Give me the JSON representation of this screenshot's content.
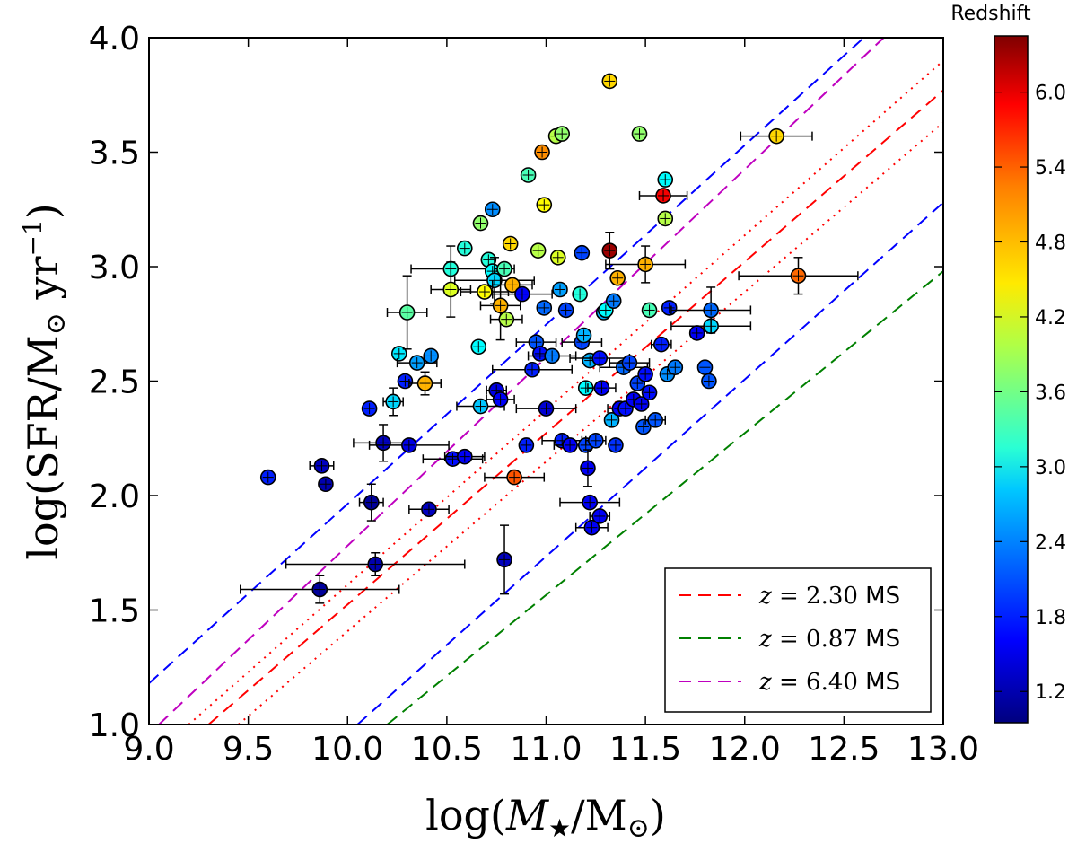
{
  "chart_data": {
    "type": "scatter",
    "xlabel_prefix": "log(",
    "xlabel_var": "M",
    "xlabel_sub": "★",
    "xlabel_mid": "/M",
    "xlabel_sun": "⊙",
    "xlabel_suffix": ")",
    "ylabel_prefix": "log(SFR/M",
    "ylabel_sun": "⊙",
    "ylabel_mid": " yr",
    "ylabel_exp": "−1",
    "ylabel_suffix": ")",
    "xlim": [
      9.0,
      13.0
    ],
    "ylim": [
      1.0,
      4.0
    ],
    "x_ticks": [
      "9.0",
      "9.5",
      "10.0",
      "10.5",
      "11.0",
      "11.5",
      "12.0",
      "12.5",
      "13.0"
    ],
    "y_ticks": [
      "1.0",
      "1.5",
      "2.0",
      "2.5",
      "3.0",
      "3.5",
      "4.0"
    ],
    "colorbar": {
      "title": "Redshift",
      "range": [
        0.95,
        6.45
      ],
      "ticks": [
        "1.2",
        "1.8",
        "2.4",
        "3.0",
        "3.6",
        "4.2",
        "4.8",
        "5.4",
        "6.0"
      ],
      "colormap": [
        "#00007f",
        "#0000ff",
        "#007fff",
        "#00ffff",
        "#7fff7f",
        "#ffff00",
        "#ff7f00",
        "#ff0000",
        "#7f0000"
      ]
    },
    "lines": [
      {
        "name": "MS z=2.30",
        "color": "#ff0000",
        "style": "dashed",
        "points": [
          [
            9.3,
            1.0
          ],
          [
            13.0,
            3.77
          ]
        ]
      },
      {
        "name": "MS z=2.30 upper",
        "color": "#ff0000",
        "style": "dotted",
        "points": [
          [
            9.2,
            1.0
          ],
          [
            13.0,
            3.9
          ]
        ]
      },
      {
        "name": "MS z=2.30 lower",
        "color": "#ff0000",
        "style": "dotted",
        "points": [
          [
            9.45,
            1.0
          ],
          [
            13.0,
            3.63
          ]
        ]
      },
      {
        "name": "MS z=0.87",
        "color": "#008000",
        "style": "dashed",
        "points": [
          [
            10.2,
            1.0
          ],
          [
            13.0,
            2.98
          ]
        ]
      },
      {
        "name": "MS z=6.40",
        "color": "#bf00bf",
        "style": "dashed",
        "points": [
          [
            9.05,
            1.0
          ],
          [
            12.7,
            4.0
          ]
        ]
      },
      {
        "name": "upper bound",
        "color": "#0000ff",
        "style": "dashed",
        "points": [
          [
            9.0,
            1.18
          ],
          [
            12.6,
            4.0
          ]
        ]
      },
      {
        "name": "lower bound",
        "color": "#0000ff",
        "style": "dashed",
        "points": [
          [
            10.05,
            1.0
          ],
          [
            13.0,
            3.28
          ]
        ]
      }
    ],
    "legend": [
      {
        "z_label": "z",
        "eq": " = ",
        "z_value": "2.30",
        "suffix": " MS",
        "color": "#ff0000"
      },
      {
        "z_label": "z",
        "eq": " = ",
        "z_value": "0.87",
        "suffix": " MS",
        "color": "#008000"
      },
      {
        "z_label": "z",
        "eq": " = ",
        "z_value": "6.40",
        "suffix": " MS",
        "color": "#bf00bf"
      }
    ],
    "points": [
      {
        "x": 9.6,
        "y": 2.08,
        "z": 1.8
      },
      {
        "x": 9.87,
        "y": 2.13,
        "z": 1.3,
        "xerr": 0.06
      },
      {
        "x": 9.89,
        "y": 2.05,
        "z": 1.2
      },
      {
        "x": 9.86,
        "y": 1.59,
        "z": 1.1,
        "xerr": 0.4,
        "yerr": 0.06
      },
      {
        "x": 10.11,
        "y": 2.38,
        "z": 1.8
      },
      {
        "x": 10.12,
        "y": 1.97,
        "z": 1.1,
        "xerr": 0.06,
        "yerr": 0.08
      },
      {
        "x": 10.14,
        "y": 1.7,
        "z": 1.2,
        "xerr": 0.45,
        "yerr": 0.05
      },
      {
        "x": 10.18,
        "y": 2.23,
        "z": 1.3,
        "xerr": 0.15,
        "yerr": 0.08
      },
      {
        "x": 10.23,
        "y": 2.41,
        "z": 2.8,
        "xerr": 0.05,
        "yerr": 0.06
      },
      {
        "x": 10.26,
        "y": 2.62,
        "z": 2.9
      },
      {
        "x": 10.29,
        "y": 2.5,
        "z": 1.8
      },
      {
        "x": 10.3,
        "y": 2.8,
        "z": 3.5,
        "xerr": 0.1,
        "yerr": 0.16
      },
      {
        "x": 10.31,
        "y": 2.22,
        "z": 1.5,
        "xerr": 0.2
      },
      {
        "x": 10.35,
        "y": 2.58,
        "z": 2.5,
        "xerr": 0.1
      },
      {
        "x": 10.39,
        "y": 2.49,
        "z": 4.8,
        "xerr": 0.08,
        "yerr": 0.05
      },
      {
        "x": 10.41,
        "y": 1.94,
        "z": 1.3,
        "xerr": 0.1
      },
      {
        "x": 10.42,
        "y": 2.61,
        "z": 2.4
      },
      {
        "x": 10.52,
        "y": 2.99,
        "z": 3.2,
        "xerr": 0.2,
        "yerr": 0.1
      },
      {
        "x": 10.53,
        "y": 2.16,
        "z": 1.7,
        "xerr": 0.15
      },
      {
        "x": 10.52,
        "y": 2.9,
        "z": 4.2,
        "xerr": 0.1,
        "yerr": 0.12
      },
      {
        "x": 10.59,
        "y": 2.17,
        "z": 1.6,
        "xerr": 0.1
      },
      {
        "x": 10.59,
        "y": 3.08,
        "z": 3.2
      },
      {
        "x": 10.66,
        "y": 2.65,
        "z": 3.0
      },
      {
        "x": 10.67,
        "y": 2.39,
        "z": 2.7,
        "xerr": 0.12
      },
      {
        "x": 10.67,
        "y": 3.19,
        "z": 3.8
      },
      {
        "x": 10.69,
        "y": 2.89,
        "z": 4.4,
        "xerr": 0.12
      },
      {
        "x": 10.71,
        "y": 3.03,
        "z": 3.2
      },
      {
        "x": 10.73,
        "y": 3.25,
        "z": 2.4
      },
      {
        "x": 10.73,
        "y": 2.98,
        "z": 3.0
      },
      {
        "x": 10.74,
        "y": 2.94,
        "z": 2.8,
        "xerr": 0.2,
        "yerr": 0.1
      },
      {
        "x": 10.75,
        "y": 2.46,
        "z": 1.5,
        "xerr": 0.05
      },
      {
        "x": 10.77,
        "y": 2.83,
        "z": 4.8,
        "xerr": 0.1,
        "yerr": 0.15
      },
      {
        "x": 10.77,
        "y": 2.42,
        "z": 1.6,
        "xerr": 0.07
      },
      {
        "x": 10.79,
        "y": 2.99,
        "z": 3.4,
        "xerr": 0.05
      },
      {
        "x": 10.79,
        "y": 1.72,
        "z": 1.3,
        "yerr": 0.15
      },
      {
        "x": 10.8,
        "y": 2.77,
        "z": 4.0,
        "xerr": 0.08
      },
      {
        "x": 10.82,
        "y": 3.1,
        "z": 4.6
      },
      {
        "x": 10.83,
        "y": 2.92,
        "z": 4.8,
        "xerr": 0.1
      },
      {
        "x": 10.84,
        "y": 2.08,
        "z": 5.3,
        "xerr": 0.15
      },
      {
        "x": 10.88,
        "y": 2.88,
        "z": 1.6,
        "xerr": 0.15
      },
      {
        "x": 10.9,
        "y": 2.22,
        "z": 1.8
      },
      {
        "x": 10.91,
        "y": 3.4,
        "z": 3.4
      },
      {
        "x": 10.93,
        "y": 2.55,
        "z": 1.8,
        "xerr": 0.2
      },
      {
        "x": 10.95,
        "y": 2.67,
        "z": 2.1,
        "xerr": 0.1
      },
      {
        "x": 10.96,
        "y": 3.07,
        "z": 4.0
      },
      {
        "x": 10.97,
        "y": 2.62,
        "z": 1.7
      },
      {
        "x": 10.98,
        "y": 3.5,
        "z": 5.0
      },
      {
        "x": 10.99,
        "y": 3.27,
        "z": 4.4
      },
      {
        "x": 10.99,
        "y": 2.82,
        "z": 2.2
      },
      {
        "x": 11.0,
        "y": 2.38,
        "z": 1.4,
        "xerr": 0.15
      },
      {
        "x": 11.03,
        "y": 2.61,
        "z": 2.3,
        "xerr": 0.12
      },
      {
        "x": 11.05,
        "y": 3.57,
        "z": 4.0
      },
      {
        "x": 11.06,
        "y": 3.04,
        "z": 4.2
      },
      {
        "x": 11.07,
        "y": 2.9,
        "z": 2.5
      },
      {
        "x": 11.08,
        "y": 3.58,
        "z": 3.8
      },
      {
        "x": 11.08,
        "y": 2.24,
        "z": 1.8,
        "xerr": 0.1
      },
      {
        "x": 11.1,
        "y": 2.81,
        "z": 2.0
      },
      {
        "x": 11.12,
        "y": 2.22,
        "z": 1.6,
        "xerr": 0.08
      },
      {
        "x": 11.17,
        "y": 2.88,
        "z": 3.2
      },
      {
        "x": 11.18,
        "y": 3.06,
        "z": 2.0
      },
      {
        "x": 11.18,
        "y": 2.67,
        "z": 2.0,
        "xerr": 0.1
      },
      {
        "x": 11.19,
        "y": 2.7,
        "z": 2.6
      },
      {
        "x": 11.2,
        "y": 2.47,
        "z": 3.0
      },
      {
        "x": 11.2,
        "y": 2.22,
        "z": 2.0
      },
      {
        "x": 11.21,
        "y": 2.12,
        "z": 1.6,
        "yerr": 0.08
      },
      {
        "x": 11.22,
        "y": 2.59,
        "z": 2.6
      },
      {
        "x": 11.22,
        "y": 1.97,
        "z": 1.6,
        "xerr": 0.15
      },
      {
        "x": 11.23,
        "y": 1.86,
        "z": 1.6,
        "xerr": 0.08
      },
      {
        "x": 11.25,
        "y": 2.24,
        "z": 2.0,
        "xerr": 0.05
      },
      {
        "x": 11.27,
        "y": 1.91,
        "z": 1.6,
        "xerr": 0.05
      },
      {
        "x": 11.27,
        "y": 2.6,
        "z": 1.7,
        "xerr": 0.15
      },
      {
        "x": 11.28,
        "y": 2.47,
        "z": 1.6,
        "xerr": 0.07
      },
      {
        "x": 11.29,
        "y": 2.8,
        "z": 2.6
      },
      {
        "x": 11.3,
        "y": 2.81,
        "z": 3.0
      },
      {
        "x": 11.32,
        "y": 3.81,
        "z": 4.6
      },
      {
        "x": 11.32,
        "y": 3.07,
        "z": 6.3,
        "yerr": 0.08
      },
      {
        "x": 11.33,
        "y": 2.33,
        "z": 2.6
      },
      {
        "x": 11.34,
        "y": 2.85,
        "z": 2.3
      },
      {
        "x": 11.35,
        "y": 2.22,
        "z": 1.9
      },
      {
        "x": 11.36,
        "y": 2.95,
        "z": 4.8
      },
      {
        "x": 11.37,
        "y": 2.38,
        "z": 1.6,
        "xerr": 0.06
      },
      {
        "x": 11.39,
        "y": 2.56,
        "z": 2.2,
        "xerr": 0.12
      },
      {
        "x": 11.4,
        "y": 2.38,
        "z": 1.7
      },
      {
        "x": 11.42,
        "y": 2.58,
        "z": 2.0,
        "xerr": 0.1
      },
      {
        "x": 11.44,
        "y": 2.42,
        "z": 1.6
      },
      {
        "x": 11.46,
        "y": 2.49,
        "z": 2.0
      },
      {
        "x": 11.47,
        "y": 3.58,
        "z": 3.8
      },
      {
        "x": 11.48,
        "y": 2.4,
        "z": 1.6
      },
      {
        "x": 11.49,
        "y": 2.3,
        "z": 2.1
      },
      {
        "x": 11.5,
        "y": 3.01,
        "z": 4.8,
        "xerr": 0.2,
        "yerr": 0.08
      },
      {
        "x": 11.5,
        "y": 2.53,
        "z": 1.7
      },
      {
        "x": 11.52,
        "y": 2.45,
        "z": 1.7
      },
      {
        "x": 11.52,
        "y": 2.81,
        "z": 3.4
      },
      {
        "x": 11.55,
        "y": 2.33,
        "z": 2.1,
        "xerr": 0.05
      },
      {
        "x": 11.58,
        "y": 2.66,
        "z": 1.8,
        "xerr": 0.05
      },
      {
        "x": 11.59,
        "y": 3.31,
        "z": 5.8,
        "xerr": 0.12
      },
      {
        "x": 11.6,
        "y": 3.21,
        "z": 4.0
      },
      {
        "x": 11.6,
        "y": 3.38,
        "z": 3.0
      },
      {
        "x": 11.61,
        "y": 2.53,
        "z": 2.4
      },
      {
        "x": 11.62,
        "y": 2.82,
        "z": 1.8
      },
      {
        "x": 11.65,
        "y": 2.56,
        "z": 2.3
      },
      {
        "x": 11.76,
        "y": 2.71,
        "z": 1.6
      },
      {
        "x": 11.8,
        "y": 2.56,
        "z": 2.1
      },
      {
        "x": 11.82,
        "y": 2.5,
        "z": 2.1
      },
      {
        "x": 11.83,
        "y": 2.74,
        "z": 2.8,
        "xerr": 0.2
      },
      {
        "x": 11.83,
        "y": 2.81,
        "z": 2.2,
        "xerr": 0.2,
        "yerr": 0.1
      },
      {
        "x": 12.16,
        "y": 3.57,
        "z": 4.6,
        "xerr": 0.18
      },
      {
        "x": 12.27,
        "y": 2.96,
        "z": 5.2,
        "xerr": 0.3,
        "yerr": 0.08
      }
    ]
  }
}
